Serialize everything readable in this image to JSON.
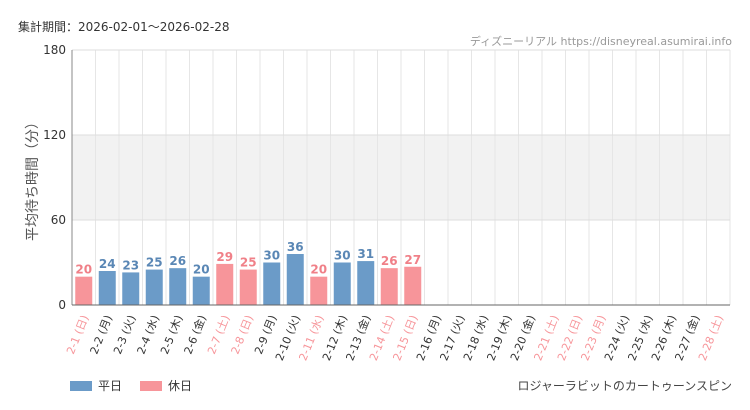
{
  "header": {
    "period_label": "集計期間：2026-02-01〜2026-02-28",
    "source": "ディズニーリアル https://disneyreal.asumirai.info"
  },
  "footer": {
    "ride_name": "ロジャーラビットのカートゥーンスピン"
  },
  "legend": [
    {
      "label": "平日",
      "color": "#6b9bc8"
    },
    {
      "label": "休日",
      "color": "#f7959a"
    }
  ],
  "chart_data": {
    "type": "bar",
    "ylabel": "平均待ち時間（分）",
    "ylim": [
      0,
      180
    ],
    "yticks": [
      0,
      60,
      120,
      180
    ],
    "shaded_band": [
      60,
      120
    ],
    "grid": true,
    "legend_position": "bottom-left",
    "colors": {
      "weekday": "#6b9bc8",
      "holiday": "#f7959a",
      "weekday_label": "#5a87b5",
      "holiday_label": "#f08088"
    },
    "categories": [
      "2-1 (日)",
      "2-2 (月)",
      "2-3 (火)",
      "2-4 (水)",
      "2-5 (木)",
      "2-6 (金)",
      "2-7 (土)",
      "2-8 (日)",
      "2-9 (月)",
      "2-10 (火)",
      "2-11 (水)",
      "2-12 (木)",
      "2-13 (金)",
      "2-14 (土)",
      "2-15 (日)",
      "2-16 (月)",
      "2-17 (火)",
      "2-18 (水)",
      "2-19 (木)",
      "2-20 (金)",
      "2-21 (土)",
      "2-22 (日)",
      "2-23 (月)",
      "2-24 (火)",
      "2-25 (水)",
      "2-26 (木)",
      "2-27 (金)",
      "2-28 (土)"
    ],
    "holiday": [
      true,
      false,
      false,
      false,
      false,
      false,
      true,
      true,
      false,
      false,
      true,
      false,
      false,
      true,
      true,
      false,
      false,
      false,
      false,
      false,
      true,
      true,
      true,
      false,
      false,
      false,
      false,
      true
    ],
    "values": [
      20,
      24,
      23,
      25,
      26,
      20,
      29,
      25,
      30,
      36,
      20,
      30,
      31,
      26,
      27,
      null,
      null,
      null,
      null,
      null,
      null,
      null,
      null,
      null,
      null,
      null,
      null,
      null
    ]
  }
}
